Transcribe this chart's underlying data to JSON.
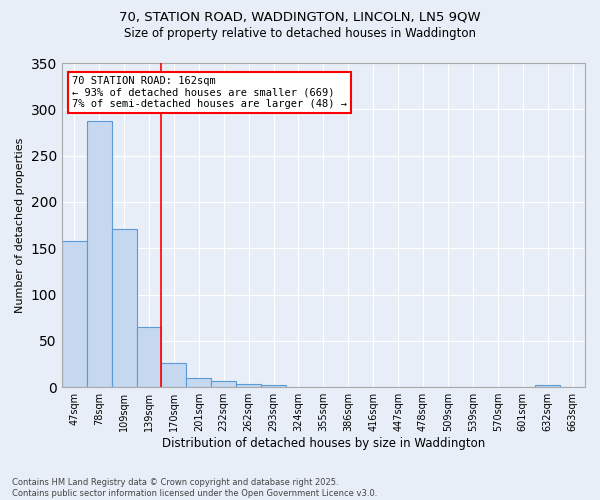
{
  "title_line1": "70, STATION ROAD, WADDINGTON, LINCOLN, LN5 9QW",
  "title_line2": "Size of property relative to detached houses in Waddington",
  "xlabel": "Distribution of detached houses by size in Waddington",
  "ylabel": "Number of detached properties",
  "categories": [
    "47sqm",
    "78sqm",
    "109sqm",
    "139sqm",
    "170sqm",
    "201sqm",
    "232sqm",
    "262sqm",
    "293sqm",
    "324sqm",
    "355sqm",
    "386sqm",
    "416sqm",
    "447sqm",
    "478sqm",
    "509sqm",
    "539sqm",
    "570sqm",
    "601sqm",
    "632sqm",
    "663sqm"
  ],
  "values": [
    158,
    287,
    171,
    65,
    26,
    10,
    7,
    4,
    2,
    0,
    0,
    0,
    0,
    0,
    0,
    0,
    0,
    0,
    0,
    2,
    0
  ],
  "bar_color": "#c5d8f0",
  "bar_edge_color": "#5b9bd5",
  "vline_color": "red",
  "vline_pos": 3.5,
  "annotation_line1": "70 STATION ROAD: 162sqm",
  "annotation_line2": "← 93% of detached houses are smaller (669)",
  "annotation_line3": "7% of semi-detached houses are larger (48) →",
  "annotation_box_color": "white",
  "annotation_box_edge_color": "red",
  "ylim": [
    0,
    350
  ],
  "yticks": [
    0,
    50,
    100,
    150,
    200,
    250,
    300,
    350
  ],
  "background_color": "#e8eef7",
  "grid_color": "white",
  "footnote_line1": "Contains HM Land Registry data © Crown copyright and database right 2025.",
  "footnote_line2": "Contains public sector information licensed under the Open Government Licence v3.0."
}
